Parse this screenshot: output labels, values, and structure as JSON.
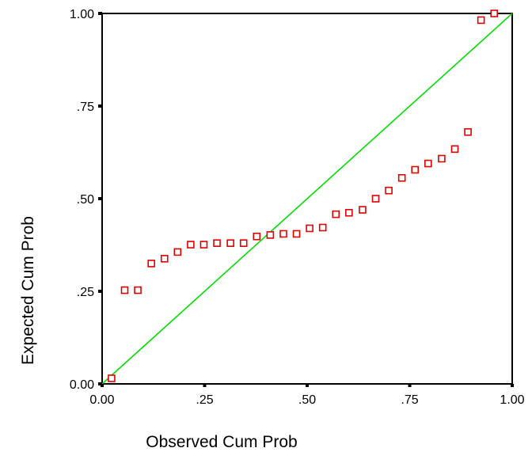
{
  "chart_data": {
    "type": "scatter",
    "title": "",
    "xlabel": "Observed Cum Prob",
    "ylabel": "Expected Cum Prob",
    "xlim": [
      0,
      1
    ],
    "ylim": [
      0,
      1
    ],
    "x_ticks": [
      {
        "value": 0,
        "label": "0.00"
      },
      {
        "value": 0.25,
        "label": ".25"
      },
      {
        "value": 0.5,
        "label": ".50"
      },
      {
        "value": 0.75,
        "label": ".75"
      },
      {
        "value": 1,
        "label": "1.00"
      }
    ],
    "y_ticks": [
      {
        "value": 0,
        "label": "0.00"
      },
      {
        "value": 0.25,
        "label": ".25"
      },
      {
        "value": 0.5,
        "label": ".50"
      },
      {
        "value": 0.75,
        "label": ".75"
      },
      {
        "value": 1,
        "label": "1.00"
      }
    ],
    "grid": false,
    "reference_line": {
      "from": [
        0,
        0
      ],
      "to": [
        1,
        1
      ],
      "color": "#00e000"
    },
    "marker": {
      "shape": "square",
      "color": "#e00000"
    },
    "points": [
      {
        "x": 0.023,
        "y": 0.015
      },
      {
        "x": 0.055,
        "y": 0.253
      },
      {
        "x": 0.087,
        "y": 0.253
      },
      {
        "x": 0.12,
        "y": 0.325
      },
      {
        "x": 0.152,
        "y": 0.338
      },
      {
        "x": 0.184,
        "y": 0.356
      },
      {
        "x": 0.216,
        "y": 0.376
      },
      {
        "x": 0.248,
        "y": 0.376
      },
      {
        "x": 0.28,
        "y": 0.38
      },
      {
        "x": 0.313,
        "y": 0.38
      },
      {
        "x": 0.345,
        "y": 0.38
      },
      {
        "x": 0.377,
        "y": 0.398
      },
      {
        "x": 0.41,
        "y": 0.402
      },
      {
        "x": 0.442,
        "y": 0.405
      },
      {
        "x": 0.474,
        "y": 0.405
      },
      {
        "x": 0.506,
        "y": 0.42
      },
      {
        "x": 0.538,
        "y": 0.422
      },
      {
        "x": 0.57,
        "y": 0.458
      },
      {
        "x": 0.602,
        "y": 0.462
      },
      {
        "x": 0.635,
        "y": 0.47
      },
      {
        "x": 0.667,
        "y": 0.5
      },
      {
        "x": 0.699,
        "y": 0.522
      },
      {
        "x": 0.731,
        "y": 0.556
      },
      {
        "x": 0.763,
        "y": 0.578
      },
      {
        "x": 0.795,
        "y": 0.595
      },
      {
        "x": 0.828,
        "y": 0.608
      },
      {
        "x": 0.86,
        "y": 0.634
      },
      {
        "x": 0.892,
        "y": 0.68
      },
      {
        "x": 0.924,
        "y": 0.982
      },
      {
        "x": 0.956,
        "y": 1.0
      }
    ]
  }
}
